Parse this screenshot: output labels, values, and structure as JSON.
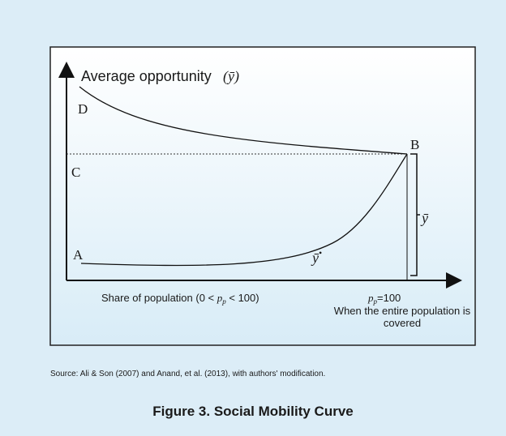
{
  "diagram": {
    "axis_y_label": "Average opportunity",
    "axis_y_symbol": "(ȳ)",
    "points": {
      "D": "D",
      "C": "C",
      "A": "A",
      "B": "B"
    },
    "bracket_label": "ȳ",
    "curve_label": "ȳ",
    "curve_label_mark": "•",
    "x_label_start": "Share of population (0 < ",
    "x_label_p": "p",
    "x_label_sub": "p",
    "x_label_end": " < 100)",
    "end_label_p": "p",
    "end_label_sub": "p",
    "end_label_value": "=100",
    "end_note_line1": "When the entire population is",
    "end_note_line2": "covered"
  },
  "source": "Source: Ali & Son (2007) and Anand, et al. (2013), with authors' modification.",
  "caption": "Figure 3. Social Mobility Curve"
}
